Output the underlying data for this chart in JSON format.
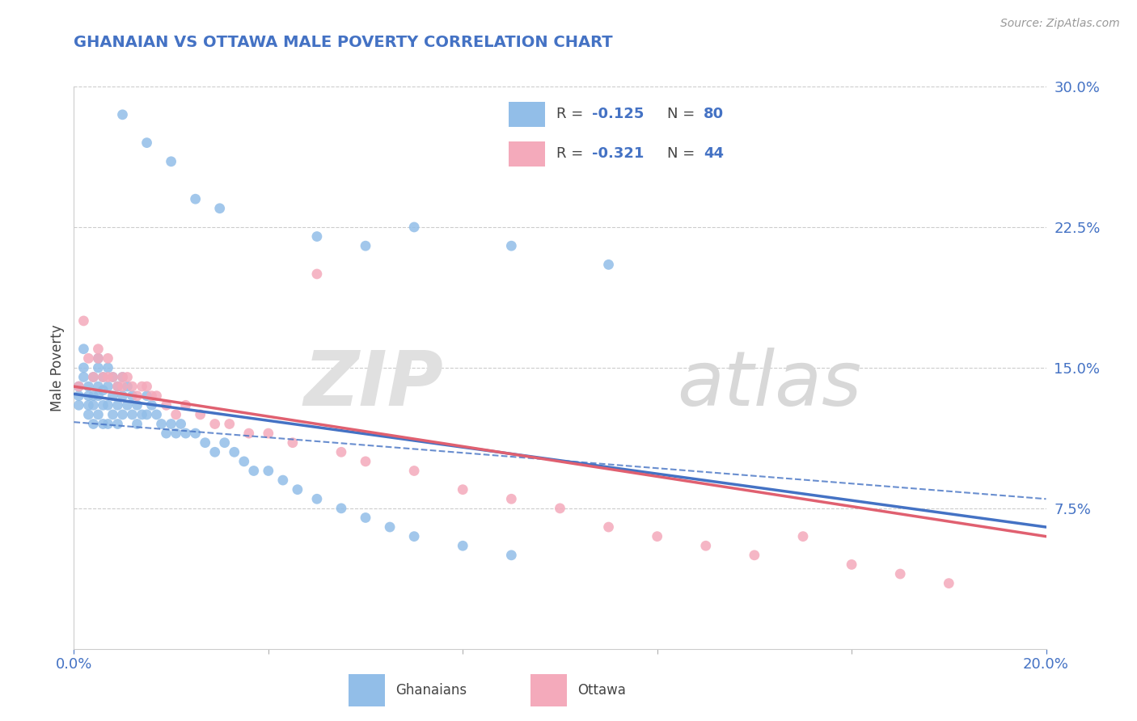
{
  "title": "GHANAIAN VS OTTAWA MALE POVERTY CORRELATION CHART",
  "source": "Source: ZipAtlas.com",
  "ylabel": "Male Poverty",
  "xlim": [
    0.0,
    0.2
  ],
  "ylim": [
    0.0,
    0.3
  ],
  "yticks": [
    0.075,
    0.15,
    0.225,
    0.3
  ],
  "ytick_labels": [
    "7.5%",
    "15.0%",
    "22.5%",
    "30.0%"
  ],
  "xtick_labels": [
    "0.0%",
    "20.0%"
  ],
  "ghanaian_color": "#92BEE8",
  "ghanaian_line_color": "#4472C4",
  "ottawa_color": "#F4AABB",
  "ottawa_line_color": "#E06070",
  "ghanaian_R": "-0.125",
  "ghanaian_N": "80",
  "ottawa_R": "-0.321",
  "ottawa_N": "44",
  "legend_label_1": "Ghanaians",
  "legend_label_2": "Ottawa",
  "background_color": "#ffffff",
  "title_color": "#4472c4",
  "axis_label_color": "#4472c4",
  "text_color": "#444444",
  "source_color": "#999999",
  "legend_value_color": "#4472c4",
  "ghanaian_x": [
    0.001,
    0.001,
    0.001,
    0.002,
    0.002,
    0.002,
    0.003,
    0.003,
    0.003,
    0.003,
    0.004,
    0.004,
    0.004,
    0.004,
    0.005,
    0.005,
    0.005,
    0.005,
    0.005,
    0.006,
    0.006,
    0.006,
    0.006,
    0.007,
    0.007,
    0.007,
    0.007,
    0.008,
    0.008,
    0.008,
    0.009,
    0.009,
    0.009,
    0.01,
    0.01,
    0.01,
    0.011,
    0.011,
    0.012,
    0.012,
    0.013,
    0.013,
    0.014,
    0.015,
    0.015,
    0.016,
    0.017,
    0.018,
    0.019,
    0.02,
    0.021,
    0.022,
    0.023,
    0.025,
    0.027,
    0.029,
    0.031,
    0.033,
    0.035,
    0.037,
    0.04,
    0.043,
    0.046,
    0.05,
    0.055,
    0.06,
    0.065,
    0.07,
    0.08,
    0.09,
    0.01,
    0.015,
    0.02,
    0.025,
    0.03,
    0.05,
    0.06,
    0.07,
    0.09,
    0.11
  ],
  "ghanaian_y": [
    0.14,
    0.13,
    0.135,
    0.145,
    0.15,
    0.16,
    0.14,
    0.135,
    0.125,
    0.13,
    0.145,
    0.135,
    0.13,
    0.12,
    0.15,
    0.14,
    0.135,
    0.125,
    0.155,
    0.145,
    0.138,
    0.13,
    0.12,
    0.15,
    0.14,
    0.13,
    0.12,
    0.145,
    0.135,
    0.125,
    0.14,
    0.13,
    0.12,
    0.145,
    0.135,
    0.125,
    0.14,
    0.13,
    0.135,
    0.125,
    0.13,
    0.12,
    0.125,
    0.135,
    0.125,
    0.13,
    0.125,
    0.12,
    0.115,
    0.12,
    0.115,
    0.12,
    0.115,
    0.115,
    0.11,
    0.105,
    0.11,
    0.105,
    0.1,
    0.095,
    0.095,
    0.09,
    0.085,
    0.08,
    0.075,
    0.07,
    0.065,
    0.06,
    0.055,
    0.05,
    0.285,
    0.27,
    0.26,
    0.24,
    0.235,
    0.22,
    0.215,
    0.225,
    0.215,
    0.205
  ],
  "ottawa_x": [
    0.001,
    0.002,
    0.003,
    0.004,
    0.005,
    0.005,
    0.006,
    0.007,
    0.007,
    0.008,
    0.009,
    0.01,
    0.01,
    0.011,
    0.012,
    0.013,
    0.014,
    0.015,
    0.016,
    0.017,
    0.019,
    0.021,
    0.023,
    0.026,
    0.029,
    0.032,
    0.036,
    0.04,
    0.045,
    0.05,
    0.055,
    0.06,
    0.07,
    0.08,
    0.09,
    0.1,
    0.11,
    0.12,
    0.13,
    0.14,
    0.15,
    0.16,
    0.17,
    0.18
  ],
  "ottawa_y": [
    0.14,
    0.175,
    0.155,
    0.145,
    0.155,
    0.16,
    0.145,
    0.155,
    0.145,
    0.145,
    0.14,
    0.145,
    0.14,
    0.145,
    0.14,
    0.135,
    0.14,
    0.14,
    0.135,
    0.135,
    0.13,
    0.125,
    0.13,
    0.125,
    0.12,
    0.12,
    0.115,
    0.115,
    0.11,
    0.2,
    0.105,
    0.1,
    0.095,
    0.085,
    0.08,
    0.075,
    0.065,
    0.06,
    0.055,
    0.05,
    0.06,
    0.045,
    0.04,
    0.035
  ]
}
